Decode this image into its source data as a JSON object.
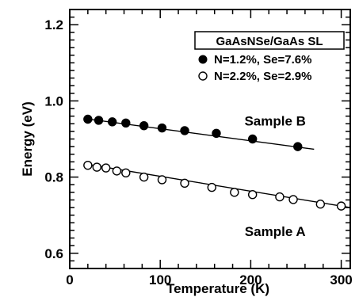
{
  "chart_data": {
    "type": "scatter",
    "title": "",
    "xlabel": "Temperature (K)",
    "ylabel": "Energy (eV)",
    "xlim": [
      0,
      310
    ],
    "ylim": [
      0.56,
      1.24
    ],
    "xticks": [
      0,
      100,
      200,
      300
    ],
    "xtick_labels": [
      "0",
      "100",
      "200",
      "300"
    ],
    "yticks": [
      0.6,
      0.8,
      1.0,
      1.2
    ],
    "ytick_labels": [
      "0.6",
      "0.8",
      "1.0",
      "1.2"
    ],
    "grid": false,
    "legend": {
      "title": "GaAsNSe/GaAs SL",
      "placement": "top-right"
    },
    "series": [
      {
        "name": "N=1.2%, Se=7.6%",
        "marker": "filled-circle",
        "color": "#000000",
        "x": [
          20,
          32,
          47,
          62,
          82,
          102,
          127,
          162,
          202,
          252
        ],
        "y": [
          0.952,
          0.949,
          0.945,
          0.942,
          0.935,
          0.929,
          0.922,
          0.915,
          0.9,
          0.88
        ],
        "fit_line": {
          "x": [
            18,
            270
          ],
          "y": [
            0.953,
            0.873
          ]
        }
      },
      {
        "name": "N=2.2%, Se=2.9%",
        "marker": "open-circle",
        "color": "#000000",
        "x": [
          20,
          30,
          40,
          52,
          62,
          82,
          102,
          127,
          157,
          182,
          202,
          232,
          247,
          277,
          300
        ],
        "y": [
          0.831,
          0.826,
          0.824,
          0.816,
          0.811,
          0.8,
          0.793,
          0.784,
          0.773,
          0.76,
          0.754,
          0.748,
          0.741,
          0.729,
          0.724
        ],
        "fit_line": {
          "x": [
            18,
            310
          ],
          "y": [
            0.834,
            0.72
          ]
        }
      }
    ],
    "annotations": [
      {
        "text": "Sample B",
        "x": 227,
        "y": 0.935
      },
      {
        "text": "Sample A",
        "x": 227,
        "y": 0.645
      }
    ]
  }
}
